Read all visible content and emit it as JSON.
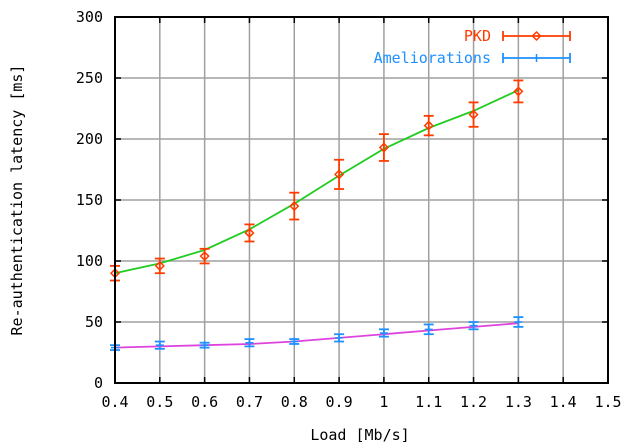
{
  "chart_data": {
    "type": "line",
    "title": "",
    "xlabel": "Load [Mb/s]",
    "ylabel": "Re-authentication latency [ms]",
    "xlim": [
      0.4,
      1.5
    ],
    "ylim": [
      0,
      300
    ],
    "x_ticks": [
      "0.4",
      "0.5",
      "0.6",
      "0.7",
      "0.8",
      "0.9",
      "1",
      "1.1",
      "1.2",
      "1.3",
      "1.4",
      "1.5"
    ],
    "x_tick_values": [
      0.4,
      0.5,
      0.6,
      0.7,
      0.8,
      0.9,
      1.0,
      1.1,
      1.2,
      1.3,
      1.4,
      1.5
    ],
    "y_ticks": [
      "0",
      "50",
      "100",
      "150",
      "200",
      "250",
      "300"
    ],
    "y_tick_values": [
      0,
      50,
      100,
      150,
      200,
      250,
      300
    ],
    "grid": true,
    "legend_position": "top-right",
    "x": [
      0.4,
      0.5,
      0.6,
      0.7,
      0.8,
      0.9,
      1.0,
      1.1,
      1.2,
      1.3
    ],
    "series": [
      {
        "name": "PKD",
        "color": "#ff3b00",
        "marker": "diamond",
        "values": [
          90,
          96,
          104,
          123,
          145,
          171,
          193,
          211,
          220,
          239
        ],
        "error": [
          6,
          6,
          6,
          7,
          11,
          12,
          11,
          8,
          10,
          9
        ]
      },
      {
        "name": "Ameliorations",
        "color": "#1e90ff",
        "marker": "plus",
        "values": [
          29,
          31,
          31,
          33,
          34,
          37,
          41,
          44,
          47,
          50
        ],
        "error": [
          2,
          3,
          2,
          3,
          2,
          3,
          3,
          4,
          3,
          4
        ]
      }
    ],
    "fit_lines": [
      {
        "color": "#22cc22",
        "values": [
          90,
          98,
          109,
          126,
          147,
          170,
          192,
          209,
          223,
          240
        ]
      },
      {
        "color": "#dd44dd",
        "values": [
          29,
          30,
          31,
          32,
          34,
          37,
          40,
          43,
          46,
          49
        ]
      }
    ]
  }
}
